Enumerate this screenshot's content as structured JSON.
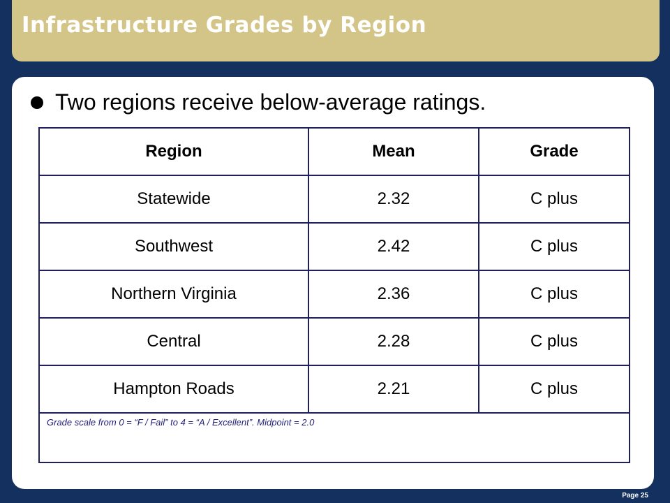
{
  "slide": {
    "title": "Infrastructure Grades by Region",
    "bullet": "Two regions receive below-average ratings.",
    "page_label": "Page 25"
  },
  "table": {
    "headers": [
      "Region",
      "Mean",
      "Grade"
    ],
    "rows": [
      [
        "Statewide",
        "2.32",
        "C plus"
      ],
      [
        "Southwest",
        "2.42",
        "C plus"
      ],
      [
        "Northern Virginia",
        "2.36",
        "C plus"
      ],
      [
        "Central",
        "2.28",
        "C plus"
      ],
      [
        "Hampton Roads",
        "2.21",
        "C plus"
      ]
    ],
    "footnote": "Grade scale from 0 = “F / Fail” to 4 = “A / Excellent”.  Midpoint = 2.0"
  },
  "colors": {
    "background": "#14305e",
    "title_bar": "#d3c487",
    "table_border": "#1f1f5e",
    "footnote_text": "#1f1f7a"
  }
}
